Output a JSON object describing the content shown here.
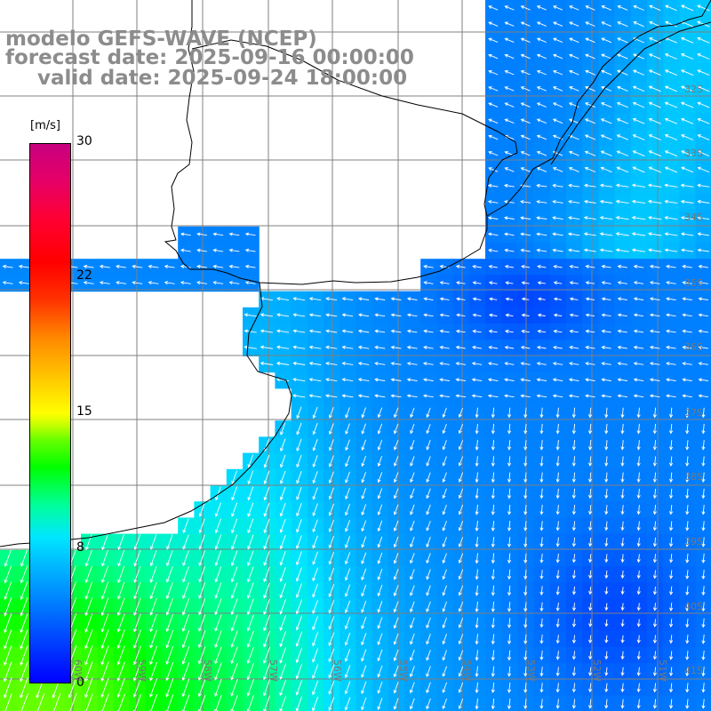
{
  "title": {
    "line1": "modelo GEFS-WAVE (NCEP)",
    "line2": "forecast date: 2025-09-16 00:00:00",
    "line3": "valid date: 2025-09-24 18:00:00"
  },
  "colorbar": {
    "unit": "[m/s]",
    "ticks": [
      "30",
      "22",
      "15",
      "8",
      "0"
    ],
    "tick_values": [
      30,
      22,
      15,
      8,
      0
    ],
    "range": [
      0,
      30
    ]
  },
  "map": {
    "lat_labels": [
      "32S",
      "33S",
      "34S",
      "35S",
      "36S",
      "37S",
      "38S",
      "39S",
      "40S",
      "41S"
    ],
    "lat_values": [
      32,
      33,
      34,
      35,
      36,
      37,
      38,
      39,
      40,
      41
    ],
    "lon_labels": [
      "60W",
      "59W",
      "58W",
      "57W",
      "56W",
      "55W",
      "54W",
      "53W",
      "52W",
      "51W"
    ],
    "lon_values": [
      60,
      59,
      58,
      57,
      56,
      55,
      54,
      53,
      52,
      51
    ],
    "extent_lon_w": [
      61.7,
      50.7
    ],
    "extent_lat_s": [
      30.6,
      41.25
    ],
    "colors": {
      "land": "#ffffff",
      "coast": "#000000",
      "grid": "#808080",
      "arrows": "#ffffff",
      "title": "#8c8c8c"
    }
  }
}
